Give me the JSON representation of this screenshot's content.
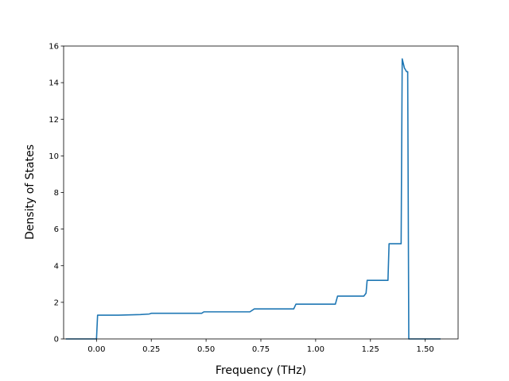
{
  "chart_data": {
    "type": "line",
    "title": "",
    "xlabel": "Frequency (THz)",
    "ylabel": "Density of States",
    "xlim": [
      -0.15,
      1.65
    ],
    "ylim": [
      0,
      16
    ],
    "x_ticks": [
      0.0,
      0.25,
      0.5,
      0.75,
      1.0,
      1.25,
      1.5
    ],
    "x_tick_labels": [
      "0.00",
      "0.25",
      "0.50",
      "0.75",
      "1.00",
      "1.25",
      "1.50"
    ],
    "y_ticks": [
      0,
      2,
      4,
      6,
      8,
      10,
      12,
      14,
      16
    ],
    "y_tick_labels": [
      "0",
      "2",
      "4",
      "6",
      "8",
      "10",
      "12",
      "14",
      "16"
    ],
    "grid": false,
    "legend": "none",
    "series": [
      {
        "color": "#1f77b4",
        "x": [
          -0.14,
          0.0,
          0.005,
          0.1,
          0.2,
          0.24,
          0.25,
          0.48,
          0.49,
          0.7,
          0.72,
          0.9,
          0.91,
          1.09,
          1.1,
          1.22,
          1.23,
          1.235,
          1.33,
          1.335,
          1.34,
          1.39,
          1.395,
          1.405,
          1.41,
          1.415,
          1.42,
          1.425,
          1.57
        ],
        "y": [
          0,
          0,
          1.3,
          1.3,
          1.33,
          1.36,
          1.4,
          1.4,
          1.48,
          1.48,
          1.64,
          1.64,
          1.9,
          1.9,
          2.34,
          2.34,
          2.5,
          3.2,
          3.2,
          5.2,
          5.2,
          5.2,
          15.3,
          14.8,
          14.7,
          14.6,
          14.6,
          0,
          0
        ]
      }
    ]
  }
}
